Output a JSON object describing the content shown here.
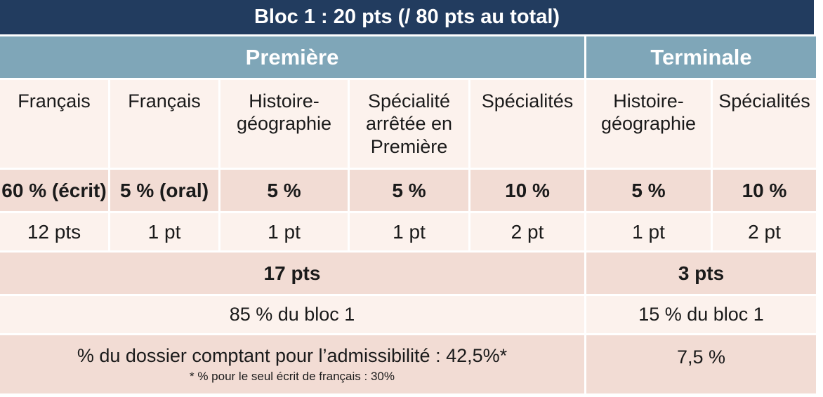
{
  "title": "Bloc 1 : 20 pts (/ 80 pts au total)",
  "groups": {
    "premiere": "Première",
    "terminale": "Terminale"
  },
  "subjects": [
    "Français",
    "Français",
    "Histoire-\ngéographie",
    "Spécialité\narrêtée en\nPremière",
    "Spécialités",
    "Histoire-\ngéographie",
    "Spécialités"
  ],
  "percentages": [
    "60 % (écrit)",
    "5 % (oral)",
    "5 %",
    "5 %",
    "10 %",
    "5 %",
    "10 %"
  ],
  "points": [
    "12 pts",
    "1 pt",
    "1 pt",
    "1 pt",
    "2 pt",
    "1 pt",
    "2 pt"
  ],
  "totals": {
    "premiere": "17 pts",
    "terminale": "3 pts"
  },
  "bloc_share": {
    "premiere": "85 % du bloc 1",
    "terminale": "15 % du bloc 1"
  },
  "dossier": {
    "premiere": "% du dossier comptant pour l’admissibilité : 42,5%*",
    "premiere_note": "* % pour le seul écrit de français : 30%",
    "terminale": "7,5 %"
  },
  "colors": {
    "title_bg": "#223c5f",
    "header_bg": "#7fa6b8",
    "light_row": "#fcf2ed",
    "dark_row": "#f2dcd4"
  }
}
